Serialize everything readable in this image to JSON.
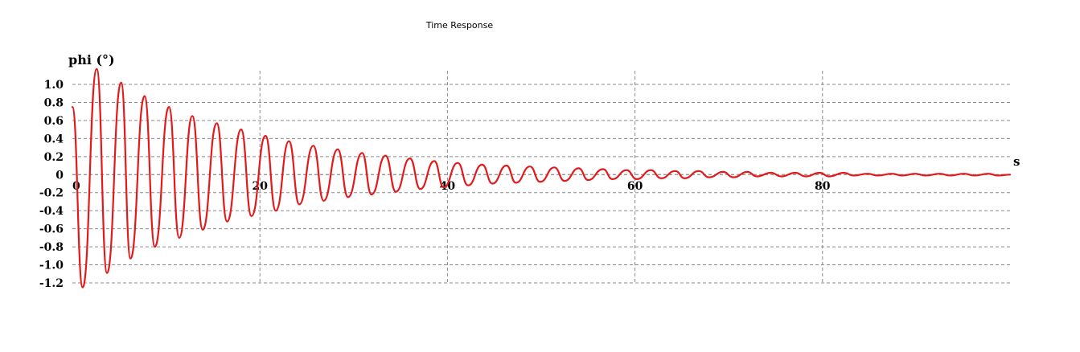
{
  "chart_data": {
    "type": "line",
    "title": "Time Response",
    "ylabel": "phi (°)",
    "xlabel": "s",
    "xlim": [
      0,
      100
    ],
    "ylim": [
      -1.2,
      1.0
    ],
    "xticks": [
      0,
      20,
      40,
      60,
      80
    ],
    "xtick_labels": [
      "0",
      "20",
      "40",
      "60",
      "80"
    ],
    "yticks": [
      1.0,
      0.8,
      0.6,
      0.4,
      0.2,
      0,
      -0.2,
      -0.4,
      -0.6,
      -0.8,
      -1.0,
      -1.2
    ],
    "ytick_labels": [
      "1.0",
      "0.8",
      "0.6",
      "0.4",
      "0.2",
      "0",
      "-0.2",
      "-0.4",
      "-0.6",
      "-0.8",
      "-1.0",
      "-1.2"
    ],
    "grid": true,
    "grid_style": "dashed",
    "series": [
      {
        "color": "#e31a1c",
        "x": [
          0.0,
          1.1,
          2.6,
          3.7,
          5.2,
          6.2,
          7.7,
          8.8,
          10.3,
          11.4,
          12.8,
          13.9,
          15.4,
          16.5,
          18.0,
          19.1,
          20.6,
          21.7,
          23.1,
          24.2,
          25.7,
          26.8,
          28.3,
          29.4,
          30.9,
          31.9,
          33.4,
          34.5,
          36.0,
          37.1,
          38.6,
          39.6,
          41.1,
          42.2,
          43.7,
          44.8,
          46.3,
          47.3,
          48.8,
          49.9,
          51.4,
          52.5,
          54.0,
          55.0,
          56.6,
          57.6,
          59.1,
          60.2,
          61.7,
          62.8,
          64.3,
          65.3,
          66.8,
          67.9,
          69.4,
          70.5,
          72.0,
          73.0,
          74.5,
          75.6,
          77.1,
          78.2,
          79.7,
          80.7,
          82.3,
          83.3,
          84.8,
          85.9,
          87.4,
          88.5,
          89.9,
          91.0,
          92.5,
          93.6,
          95.1,
          96.2,
          97.7,
          98.7,
          100.0
        ],
        "y": [
          0.75,
          -1.25,
          1.17,
          -1.09,
          1.02,
          -0.93,
          0.87,
          -0.8,
          0.75,
          -0.7,
          0.65,
          -0.61,
          0.57,
          -0.52,
          0.5,
          -0.46,
          0.43,
          -0.4,
          0.37,
          -0.33,
          0.32,
          -0.29,
          0.28,
          -0.25,
          0.24,
          -0.22,
          0.21,
          -0.19,
          0.18,
          -0.16,
          0.15,
          -0.14,
          0.13,
          -0.12,
          0.11,
          -0.1,
          0.1,
          -0.09,
          0.09,
          -0.08,
          0.08,
          -0.07,
          0.07,
          -0.06,
          0.06,
          -0.05,
          0.05,
          -0.05,
          0.05,
          -0.04,
          0.04,
          -0.04,
          0.04,
          -0.03,
          0.03,
          -0.03,
          0.03,
          -0.02,
          0.02,
          -0.02,
          0.02,
          -0.02,
          0.02,
          -0.02,
          0.02,
          -0.01,
          0.01,
          -0.01,
          0.01,
          -0.01,
          0.01,
          -0.01,
          0.01,
          -0.01,
          0.01,
          -0.01,
          0.01,
          -0.01,
          0.0
        ]
      }
    ]
  }
}
